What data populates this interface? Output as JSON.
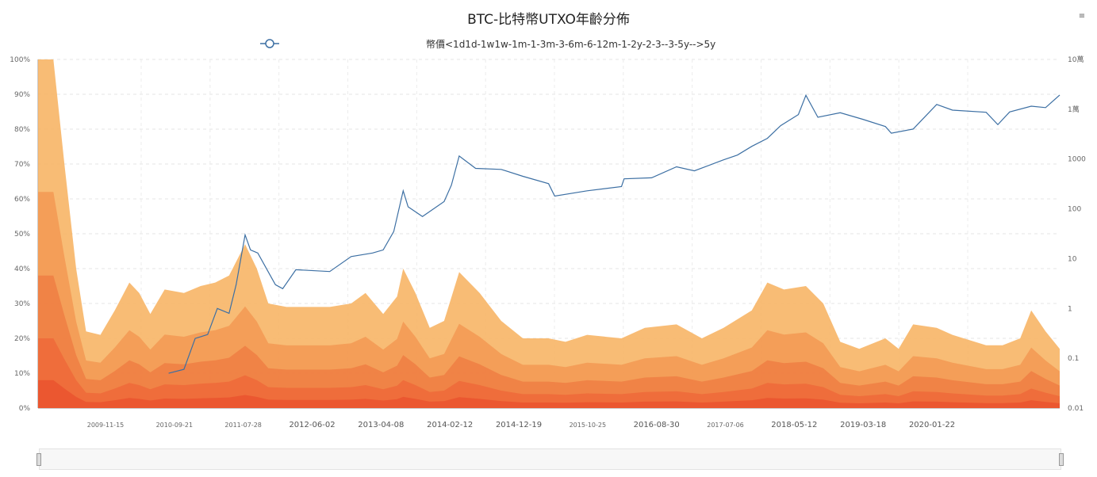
{
  "title": "BTC-比特幣UTXO年齡分佈",
  "corner_button": "≡",
  "legend": {
    "label": "幣價<1d1d-1w1w-1m-1-3m-3-6m-6-12m-1-2y-2-3--3-5y-->5y",
    "price_color": "#3c6fa3"
  },
  "colors": {
    "price": "#3c6fa3",
    "bands": [
      "#f7b566",
      "#f39a55",
      "#f07f45",
      "#ee6a3a",
      "#ea5430"
    ]
  },
  "zoom_slider": {
    "start_pct": 0,
    "end_pct": 100
  },
  "chart_data": {
    "type": "area",
    "x_tick_labels": [
      "2009-11-15",
      "2010-09-21",
      "2011-07-28",
      "2012-06-02",
      "2013-04-08",
      "2014-02-12",
      "2014-12-19",
      "2015-10-25",
      "2016-08-30",
      "2017-07-06",
      "2018-05-12",
      "2019-03-18",
      "2020-01-22"
    ],
    "x_tick_emphasis": [
      false,
      false,
      false,
      true,
      true,
      true,
      true,
      false,
      true,
      false,
      true,
      true,
      true
    ],
    "left_axis": {
      "ticks": [
        "0%",
        "10%",
        "20%",
        "30%",
        "40%",
        "50%",
        "60%",
        "70%",
        "80%",
        "90%",
        "100%"
      ],
      "ylim": [
        0,
        100
      ]
    },
    "right_axis": {
      "scale": "log",
      "ticks": [
        "0.01",
        "0.1",
        "1",
        "10",
        "100",
        "1000",
        "1萬",
        "10萬"
      ],
      "ylim": [
        0.01,
        100000
      ]
    },
    "date_range": [
      "2009-01-09",
      "2020-11-30"
    ],
    "series": [
      {
        "name": "幣價",
        "axis": "right",
        "points": [
          [
            "2010-07-18",
            0.05
          ],
          [
            "2010-09-21",
            0.06
          ],
          [
            "2010-11-08",
            0.25
          ],
          [
            "2010-12-31",
            0.3
          ],
          [
            "2011-02-10",
            1.0
          ],
          [
            "2011-04-01",
            0.8
          ],
          [
            "2011-05-01",
            3.0
          ],
          [
            "2011-06-08",
            30
          ],
          [
            "2011-07-01",
            15
          ],
          [
            "2011-08-01",
            13
          ],
          [
            "2011-10-15",
            3.0
          ],
          [
            "2011-11-15",
            2.5
          ],
          [
            "2012-01-10",
            6
          ],
          [
            "2012-06-02",
            5.5
          ],
          [
            "2012-09-01",
            11
          ],
          [
            "2012-12-01",
            13
          ],
          [
            "2013-01-15",
            15
          ],
          [
            "2013-03-01",
            35
          ],
          [
            "2013-04-10",
            230
          ],
          [
            "2013-05-01",
            110
          ],
          [
            "2013-07-01",
            70
          ],
          [
            "2013-10-01",
            140
          ],
          [
            "2013-11-01",
            300
          ],
          [
            "2013-12-04",
            1150
          ],
          [
            "2014-02-12",
            650
          ],
          [
            "2014-06-01",
            620
          ],
          [
            "2014-09-01",
            450
          ],
          [
            "2014-12-19",
            320
          ],
          [
            "2015-01-14",
            180
          ],
          [
            "2015-06-01",
            230
          ],
          [
            "2015-10-25",
            280
          ],
          [
            "2015-11-05",
            400
          ],
          [
            "2016-03-01",
            420
          ],
          [
            "2016-06-15",
            700
          ],
          [
            "2016-08-30",
            580
          ],
          [
            "2016-12-31",
            960
          ],
          [
            "2017-03-01",
            1200
          ],
          [
            "2017-05-01",
            1800
          ],
          [
            "2017-07-06",
            2600
          ],
          [
            "2017-09-01",
            4700
          ],
          [
            "2017-11-15",
            7800
          ],
          [
            "2017-12-17",
            19000
          ],
          [
            "2018-02-06",
            6900
          ],
          [
            "2018-05-12",
            8500
          ],
          [
            "2018-08-15",
            6300
          ],
          [
            "2018-11-20",
            4500
          ],
          [
            "2018-12-15",
            3300
          ],
          [
            "2019-03-18",
            4000
          ],
          [
            "2019-06-26",
            12500
          ],
          [
            "2019-09-01",
            9600
          ],
          [
            "2020-01-22",
            8700
          ],
          [
            "2020-03-12",
            4900
          ],
          [
            "2020-05-01",
            8800
          ],
          [
            "2020-08-01",
            11500
          ],
          [
            "2020-10-01",
            10800
          ],
          [
            "2020-11-30",
            19300
          ]
        ]
      },
      {
        "name": "<1d..>5y stacked",
        "axis": "left",
        "note_levels": "top envelope of stacked share",
        "points": [
          [
            "2009-01-09",
            100
          ],
          [
            "2009-03-15",
            100
          ],
          [
            "2009-05-01",
            70
          ],
          [
            "2009-06-20",
            40
          ],
          [
            "2009-08-01",
            22
          ],
          [
            "2009-10-01",
            21
          ],
          [
            "2009-12-01",
            28
          ],
          [
            "2010-02-01",
            36
          ],
          [
            "2010-03-15",
            33
          ],
          [
            "2010-05-01",
            27
          ],
          [
            "2010-07-01",
            34
          ],
          [
            "2010-09-21",
            33
          ],
          [
            "2010-12-01",
            35
          ],
          [
            "2011-02-01",
            36
          ],
          [
            "2011-04-01",
            38
          ],
          [
            "2011-06-08",
            47
          ],
          [
            "2011-07-28",
            40
          ],
          [
            "2011-09-15",
            30
          ],
          [
            "2011-12-01",
            29
          ],
          [
            "2012-03-01",
            29
          ],
          [
            "2012-06-02",
            29
          ],
          [
            "2012-09-01",
            30
          ],
          [
            "2012-11-01",
            33
          ],
          [
            "2013-01-15",
            27
          ],
          [
            "2013-03-15",
            32
          ],
          [
            "2013-04-10",
            40
          ],
          [
            "2013-06-01",
            33
          ],
          [
            "2013-08-01",
            23
          ],
          [
            "2013-10-01",
            25
          ],
          [
            "2013-12-04",
            39
          ],
          [
            "2014-03-01",
            33
          ],
          [
            "2014-06-01",
            25
          ],
          [
            "2014-09-01",
            20
          ],
          [
            "2014-12-19",
            20
          ],
          [
            "2015-03-01",
            19
          ],
          [
            "2015-06-01",
            21
          ],
          [
            "2015-10-25",
            20
          ],
          [
            "2016-02-01",
            23
          ],
          [
            "2016-06-15",
            24
          ],
          [
            "2016-10-01",
            20
          ],
          [
            "2017-01-01",
            23
          ],
          [
            "2017-05-01",
            28
          ],
          [
            "2017-07-06",
            36
          ],
          [
            "2017-09-15",
            34
          ],
          [
            "2017-12-17",
            35
          ],
          [
            "2018-03-01",
            30
          ],
          [
            "2018-05-12",
            19
          ],
          [
            "2018-08-01",
            17
          ],
          [
            "2018-11-20",
            20
          ],
          [
            "2019-01-15",
            17
          ],
          [
            "2019-03-18",
            24
          ],
          [
            "2019-06-26",
            23
          ],
          [
            "2019-09-01",
            21
          ],
          [
            "2020-01-22",
            18
          ],
          [
            "2020-04-01",
            18
          ],
          [
            "2020-06-15",
            20
          ],
          [
            "2020-08-01",
            28
          ],
          [
            "2020-10-01",
            22
          ],
          [
            "2020-11-30",
            17
          ]
        ]
      }
    ],
    "area_layers_note": "five orange stacked bands, each a fraction of the top envelope"
  }
}
